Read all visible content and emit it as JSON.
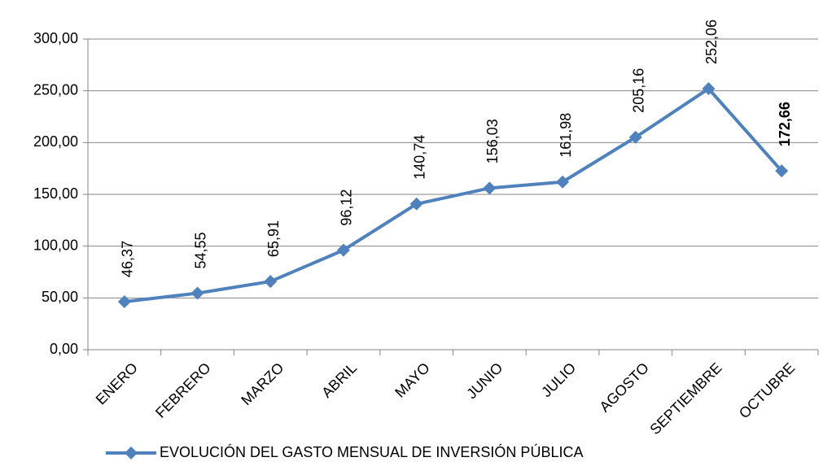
{
  "chart_data": {
    "type": "line",
    "categories": [
      "ENERO",
      "FEBRERO",
      "MARZO",
      "ABRIL",
      "MAYO",
      "JUNIO",
      "JULIO",
      "AGOSTO",
      "SEPTIEMBRE",
      "OCTUBRE"
    ],
    "series": [
      {
        "name": "EVOLUCIÓN DEL GASTO MENSUAL DE INVERSIÓN PÚBLICA",
        "color": "#4f81bd",
        "values": [
          46.37,
          54.55,
          65.91,
          96.12,
          140.74,
          156.03,
          161.98,
          205.16,
          252.06,
          172.66
        ],
        "value_labels": [
          "46,37",
          "54,55",
          "65,91",
          "96,12",
          "140,74",
          "156,03",
          "161,98",
          "205,16",
          "252,06",
          "172,66"
        ],
        "value_label_colors": [
          "#000000",
          "#000000",
          "#000000",
          "#000000",
          "#000000",
          "#000000",
          "#000000",
          "#000000",
          "#000000",
          "#7030a0"
        ]
      }
    ],
    "ylim": [
      0,
      300
    ],
    "yticks": [
      {
        "value": 0,
        "label": "0,00"
      },
      {
        "value": 50,
        "label": "50,00"
      },
      {
        "value": 100,
        "label": "100,00"
      },
      {
        "value": 150,
        "label": "150,00"
      },
      {
        "value": 200,
        "label": "200,00"
      },
      {
        "value": 250,
        "label": "250,00"
      },
      {
        "value": 300,
        "label": "300,00"
      }
    ],
    "grid": true,
    "legend": "bottom"
  }
}
